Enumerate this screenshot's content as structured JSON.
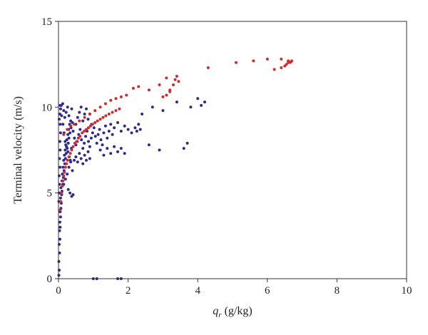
{
  "chart_data": {
    "type": "scatter",
    "xlabel": "q_r (g/kg)",
    "xlabel_main": "q",
    "xlabel_sub": "r",
    "xlabel_unit": " (g/kg)",
    "ylabel": "Terminal velocity (m/s)",
    "xlim": [
      0,
      10
    ],
    "ylim": [
      0,
      15
    ],
    "x_ticks": [
      0,
      2,
      4,
      6,
      8,
      10
    ],
    "y_ticks": [
      0,
      5,
      10,
      15
    ],
    "grid": false,
    "colors": {
      "series_1": "#2e2a8f",
      "series_2": "#d22b2b",
      "axis": "#333333"
    },
    "series": [
      {
        "color": "#2e2a8f",
        "points": [
          [
            0.01,
            0.2
          ],
          [
            0.02,
            0.5
          ],
          [
            0.01,
            1.0
          ],
          [
            0.03,
            1.5
          ],
          [
            0.02,
            2.0
          ],
          [
            0.04,
            2.3
          ],
          [
            0.03,
            2.8
          ],
          [
            0.05,
            3.0
          ],
          [
            0.04,
            3.3
          ],
          [
            0.06,
            3.6
          ],
          [
            0.05,
            3.9
          ],
          [
            0.07,
            4.1
          ],
          [
            0.08,
            4.4
          ],
          [
            0.06,
            4.7
          ],
          [
            0.09,
            4.9
          ],
          [
            0.1,
            5.1
          ],
          [
            0.07,
            5.3
          ],
          [
            0.12,
            5.5
          ],
          [
            0.1,
            5.7
          ],
          [
            0.14,
            5.9
          ],
          [
            0.11,
            6.1
          ],
          [
            0.16,
            6.3
          ],
          [
            0.13,
            6.5
          ],
          [
            0.18,
            6.7
          ],
          [
            0.15,
            6.9
          ],
          [
            0.2,
            7.0
          ],
          [
            0.17,
            7.2
          ],
          [
            0.22,
            7.3
          ],
          [
            0.19,
            7.5
          ],
          [
            0.25,
            7.6
          ],
          [
            0.21,
            7.8
          ],
          [
            0.28,
            7.9
          ],
          [
            0.24,
            8.1
          ],
          [
            0.3,
            8.2
          ],
          [
            0.27,
            8.4
          ],
          [
            0.33,
            8.5
          ],
          [
            0.29,
            8.7
          ],
          [
            0.36,
            8.8
          ],
          [
            0.32,
            9.0
          ],
          [
            0.4,
            9.1
          ],
          [
            0.02,
            9.3
          ],
          [
            0.04,
            9.6
          ],
          [
            0.06,
            9.9
          ],
          [
            0.08,
            10.1
          ],
          [
            0.12,
            10.2
          ],
          [
            0.15,
            9.8
          ],
          [
            0.18,
            9.4
          ],
          [
            0.22,
            9.7
          ],
          [
            0.26,
            10.0
          ],
          [
            0.3,
            9.5
          ],
          [
            0.35,
            9.2
          ],
          [
            0.38,
            9.9
          ],
          [
            0.42,
            8.6
          ],
          [
            0.46,
            8.2
          ],
          [
            0.5,
            7.8
          ],
          [
            0.54,
            8.0
          ],
          [
            0.58,
            8.4
          ],
          [
            0.62,
            8.7
          ],
          [
            0.66,
            8.1
          ],
          [
            0.7,
            7.6
          ],
          [
            0.74,
            7.9
          ],
          [
            0.78,
            8.3
          ],
          [
            0.82,
            8.6
          ],
          [
            0.86,
            8.0
          ],
          [
            0.9,
            7.7
          ],
          [
            0.94,
            8.2
          ],
          [
            0.98,
            8.5
          ],
          [
            1.02,
            8.8
          ],
          [
            1.06,
            8.3
          ],
          [
            1.1,
            7.9
          ],
          [
            1.14,
            8.4
          ],
          [
            1.18,
            8.7
          ],
          [
            1.22,
            8.1
          ],
          [
            1.26,
            7.8
          ],
          [
            1.3,
            8.5
          ],
          [
            1.35,
            8.9
          ],
          [
            1.4,
            8.2
          ],
          [
            1.45,
            8.6
          ],
          [
            1.5,
            9.0
          ],
          [
            1.55,
            8.4
          ],
          [
            0.5,
            9.0
          ],
          [
            0.55,
            9.4
          ],
          [
            0.6,
            9.7
          ],
          [
            0.65,
            10.0
          ],
          [
            0.7,
            9.2
          ],
          [
            0.75,
            9.6
          ],
          [
            0.8,
            9.9
          ],
          [
            0.85,
            9.3
          ],
          [
            0.9,
            9.6
          ],
          [
            0.95,
            9.0
          ],
          [
            0.45,
            6.9
          ],
          [
            0.5,
            7.1
          ],
          [
            0.55,
            6.8
          ],
          [
            0.6,
            7.3
          ],
          [
            0.65,
            7.0
          ],
          [
            0.7,
            6.7
          ],
          [
            0.75,
            7.2
          ],
          [
            0.8,
            6.9
          ],
          [
            0.85,
            7.4
          ],
          [
            0.9,
            7.0
          ],
          [
            0.3,
            6.5
          ],
          [
            0.35,
            6.8
          ],
          [
            0.4,
            6.3
          ],
          [
            0.25,
            6.1
          ],
          [
            0.2,
            5.8
          ],
          [
            0.15,
            5.5
          ],
          [
            0.28,
            5.2
          ],
          [
            0.33,
            5.0
          ],
          [
            0.38,
            4.8
          ],
          [
            0.42,
            4.9
          ],
          [
            1.6,
            8.8
          ],
          [
            1.7,
            9.1
          ],
          [
            1.8,
            8.6
          ],
          [
            1.9,
            8.9
          ],
          [
            2.0,
            8.7
          ],
          [
            2.1,
            8.5
          ],
          [
            2.2,
            8.8
          ],
          [
            2.25,
            8.6
          ],
          [
            2.3,
            9.0
          ],
          [
            2.35,
            8.7
          ],
          [
            1.2,
            7.5
          ],
          [
            1.3,
            7.2
          ],
          [
            1.4,
            7.6
          ],
          [
            1.5,
            7.3
          ],
          [
            1.6,
            7.7
          ],
          [
            1.7,
            7.4
          ],
          [
            1.8,
            7.6
          ],
          [
            1.9,
            7.3
          ],
          [
            2.6,
            7.8
          ],
          [
            2.9,
            7.5
          ],
          [
            3.0,
            9.8
          ],
          [
            3.4,
            10.3
          ],
          [
            3.6,
            7.6
          ],
          [
            3.7,
            7.9
          ],
          [
            4.0,
            10.5
          ],
          [
            4.2,
            10.3
          ],
          [
            2.7,
            10.0
          ],
          [
            2.4,
            9.6
          ],
          [
            3.8,
            10.0
          ],
          [
            4.1,
            10.1
          ],
          [
            0.05,
            10.1
          ],
          [
            0.09,
            9.5
          ],
          [
            0.13,
            9.0
          ],
          [
            0.16,
            8.5
          ],
          [
            0.19,
            8.0
          ],
          [
            0.23,
            7.7
          ],
          [
            0.27,
            7.4
          ],
          [
            0.31,
            7.1
          ],
          [
            0.34,
            6.9
          ],
          [
            0.37,
            7.6
          ],
          [
            0.01,
            4.5
          ],
          [
            0.02,
            5.0
          ],
          [
            0.03,
            5.5
          ],
          [
            0.02,
            6.0
          ],
          [
            0.04,
            6.5
          ],
          [
            0.03,
            7.0
          ],
          [
            0.05,
            7.5
          ],
          [
            0.04,
            8.0
          ],
          [
            0.06,
            8.5
          ],
          [
            0.05,
            9.0
          ],
          [
            1.0,
            0.0
          ],
          [
            1.1,
            0.0
          ],
          [
            1.7,
            0.0
          ],
          [
            1.8,
            0.0
          ]
        ]
      },
      {
        "color": "#d22b2b",
        "points": [
          [
            0.05,
            4.0
          ],
          [
            0.07,
            4.5
          ],
          [
            0.09,
            5.0
          ],
          [
            0.11,
            5.4
          ],
          [
            0.13,
            5.7
          ],
          [
            0.15,
            6.0
          ],
          [
            0.17,
            6.2
          ],
          [
            0.2,
            6.5
          ],
          [
            0.23,
            6.7
          ],
          [
            0.26,
            6.9
          ],
          [
            0.3,
            7.1
          ],
          [
            0.34,
            7.3
          ],
          [
            0.38,
            7.5
          ],
          [
            0.42,
            7.7
          ],
          [
            0.47,
            7.9
          ],
          [
            0.52,
            8.0
          ],
          [
            0.57,
            8.2
          ],
          [
            0.62,
            8.3
          ],
          [
            0.68,
            8.5
          ],
          [
            0.74,
            8.6
          ],
          [
            0.8,
            8.7
          ],
          [
            0.86,
            8.8
          ],
          [
            0.92,
            8.9
          ],
          [
            0.98,
            9.0
          ],
          [
            1.05,
            9.1
          ],
          [
            1.12,
            9.2
          ],
          [
            1.2,
            9.3
          ],
          [
            1.28,
            9.4
          ],
          [
            1.36,
            9.5
          ],
          [
            1.45,
            9.6
          ],
          [
            1.55,
            9.7
          ],
          [
            1.65,
            9.8
          ],
          [
            1.75,
            9.9
          ],
          [
            0.15,
            8.4
          ],
          [
            0.25,
            8.7
          ],
          [
            0.35,
            8.9
          ],
          [
            0.45,
            9.0
          ],
          [
            0.6,
            9.2
          ],
          [
            0.75,
            9.4
          ],
          [
            0.9,
            9.6
          ],
          [
            1.05,
            9.8
          ],
          [
            1.2,
            10.0
          ],
          [
            1.35,
            10.2
          ],
          [
            1.5,
            10.4
          ],
          [
            1.65,
            10.5
          ],
          [
            1.8,
            10.6
          ],
          [
            1.95,
            10.7
          ],
          [
            2.15,
            11.1
          ],
          [
            2.3,
            11.2
          ],
          [
            2.6,
            11.0
          ],
          [
            3.0,
            10.6
          ],
          [
            3.1,
            10.7
          ],
          [
            3.2,
            11.0
          ],
          [
            3.3,
            11.3
          ],
          [
            3.35,
            11.6
          ],
          [
            3.4,
            11.8
          ],
          [
            3.45,
            11.5
          ],
          [
            3.1,
            11.7
          ],
          [
            2.9,
            11.3
          ],
          [
            3.2,
            10.9
          ],
          [
            4.3,
            12.3
          ],
          [
            5.1,
            12.6
          ],
          [
            5.6,
            12.7
          ],
          [
            6.0,
            12.8
          ],
          [
            6.4,
            12.8
          ],
          [
            6.6,
            12.7
          ],
          [
            6.65,
            12.6
          ],
          [
            6.7,
            12.7
          ],
          [
            6.5,
            12.4
          ],
          [
            6.4,
            12.3
          ],
          [
            6.2,
            12.2
          ],
          [
            6.55,
            12.5
          ],
          [
            6.6,
            12.6
          ],
          [
            6.68,
            12.65
          ]
        ]
      }
    ]
  }
}
